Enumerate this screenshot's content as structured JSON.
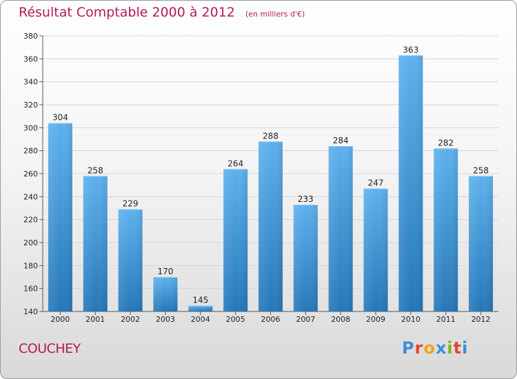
{
  "chart_data": {
    "type": "bar",
    "title": "Résultat Comptable 2000 à 2012",
    "subtitle": "(en milliers d'€)",
    "xlabel": "",
    "ylabel": "",
    "categories": [
      "2000",
      "2001",
      "2002",
      "2003",
      "2004",
      "2005",
      "2006",
      "2007",
      "2008",
      "2009",
      "2010",
      "2011",
      "2012"
    ],
    "values": [
      304,
      258,
      229,
      170,
      145,
      264,
      288,
      233,
      284,
      247,
      363,
      282,
      258
    ],
    "ylim": [
      140,
      380
    ],
    "yticks": [
      140,
      160,
      180,
      200,
      220,
      240,
      260,
      280,
      300,
      320,
      340,
      360,
      380
    ],
    "grid": true,
    "bar_color": "#3a8fd6"
  },
  "footer": {
    "city": "COUCHEY",
    "logo_text": "Proxiti",
    "logo_colors": [
      "#3a8fd6",
      "#e8462a",
      "#f2a413",
      "#3a8fd6",
      "#7ab51d",
      "#e8462a",
      "#3a8fd6"
    ]
  }
}
